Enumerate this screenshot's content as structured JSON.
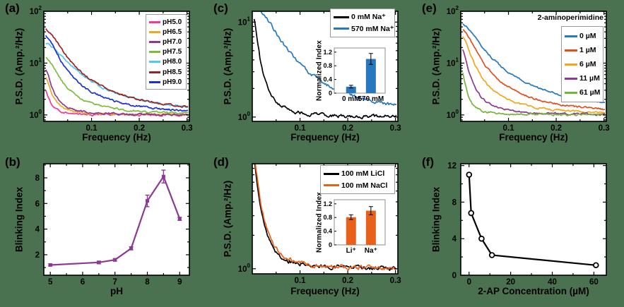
{
  "figure": {
    "background_color": "#4a7150",
    "plot_bg": "#ffffff",
    "panels": {
      "a": {
        "tag": "(a)",
        "xlabel": "Frequency (Hz)",
        "ylabel": "P.S.D. (Amp.²/Hz)"
      },
      "b": {
        "tag": "(b)",
        "xlabel": "pH",
        "ylabel": "Blinking Index"
      },
      "c": {
        "tag": "(c)",
        "xlabel": "Frequency (Hz)",
        "ylabel": "P.S.D. (Amp.²/Hz)",
        "inset_ylabel": "Normalized Index"
      },
      "d": {
        "tag": "(d)",
        "xlabel": "Frequency (Hz)",
        "ylabel": "P.S.D. (Amp.²/Hz)",
        "inset_ylabel": "Normalized Index"
      },
      "e": {
        "tag": "(e)",
        "xlabel": "Frequency (Hz)",
        "ylabel": "P.S.D. (Amp.²/Hz)",
        "legend_title": "2-aminoperimidine"
      },
      "f": {
        "tag": "(f)",
        "xlabel": "2-AP Concentration (µM)",
        "ylabel": "Blinking Index"
      }
    }
  },
  "chart_data": [
    {
      "panel": "a",
      "type": "line",
      "y_scale": "log",
      "xlabel": "Frequency (Hz)",
      "ylabel": "P.S.D. (Amp.²/Hz)",
      "x_range": [
        0,
        0.305
      ],
      "y_range": [
        0.75,
        100
      ],
      "x_ticks": [
        0.1,
        0.2,
        0.3
      ],
      "x_minor_ticks": [
        0.05,
        0.15,
        0.25
      ],
      "y_tick_exponents": [
        0,
        1,
        2
      ],
      "noise_floor": 1.0,
      "legend_position": "top-right",
      "series": [
        {
          "name": "pH5.0",
          "color": "#f5379b",
          "psd_peak": 2.3,
          "corner_freq_hz": 0.01
        },
        {
          "name": "pH6.5",
          "color": "#eea828",
          "psd_peak": 4.8,
          "corner_freq_hz": 0.012
        },
        {
          "name": "pH7.0",
          "color": "#8a3a92",
          "psd_peak": 7.5,
          "corner_freq_hz": 0.012
        },
        {
          "name": "pH7.5",
          "color": "#7cbd3c",
          "psd_peak": 12.5,
          "corner_freq_hz": 0.024
        },
        {
          "name": "pH8.0",
          "color": "#4fc8f0",
          "psd_peak": 23,
          "corner_freq_hz": 0.042
        },
        {
          "name": "pH8.5",
          "color": "#9c2123",
          "psd_peak": 45,
          "corner_freq_hz": 0.03
        },
        {
          "name": "pH9.0",
          "color": "#1c2fd8",
          "psd_peak": 33,
          "corner_freq_hz": 0.024
        }
      ]
    },
    {
      "panel": "b",
      "type": "scatter-line",
      "xlabel": "pH",
      "ylabel": "Blinking Index",
      "x": [
        5,
        6.5,
        7,
        7.5,
        8,
        8.5,
        9
      ],
      "y": [
        1.2,
        1.4,
        1.6,
        2.5,
        6.2,
        8.1,
        4.8
      ],
      "y_err": [
        0.08,
        0.1,
        0.1,
        0.12,
        0.45,
        0.5,
        0.12
      ],
      "color": "#8a3a92",
      "marker": "square",
      "x_range": [
        4.8,
        9.3
      ],
      "y_range": [
        0.4,
        9.1
      ],
      "x_ticks": [
        5,
        6,
        7,
        8,
        9
      ],
      "y_ticks": [
        2,
        4,
        6,
        8
      ],
      "x_minor_ticks": [
        5.5,
        6.5,
        7.5,
        8.5
      ],
      "y_minor_ticks": [
        1,
        3,
        5,
        7,
        9
      ]
    },
    {
      "panel": "c",
      "type": "line",
      "y_scale": "log",
      "xlabel": "Frequency (Hz)",
      "ylabel": "P.S.D. (Amp.²/Hz)",
      "x_range": [
        0,
        0.305
      ],
      "y_range": [
        0.9,
        13
      ],
      "x_ticks": [
        0.1,
        0.2,
        0.3
      ],
      "x_minor_ticks": [
        0.05,
        0.15,
        0.25
      ],
      "y_tick_exponents": [
        0,
        1
      ],
      "noise_floor": 1.0,
      "legend_position": "top-right",
      "series": [
        {
          "name": "0 mM Na⁺",
          "color": "#000000",
          "psd_peak": 11.5,
          "corner_freq_hz": 0.01
        },
        {
          "name": "570 mM Na⁺",
          "color": "#2878be",
          "psd_peak": 14,
          "corner_freq_hz": 0.048
        }
      ],
      "inset": {
        "type": "bar",
        "ylabel": "Normalized Index",
        "categories": [
          "0 mM",
          "570 mM"
        ],
        "values": [
          0.19,
          1.0
        ],
        "errors": [
          0.04,
          0.16
        ],
        "bar_color": "#2878be",
        "y_ticks": [
          0,
          0.4,
          0.8,
          1.2
        ],
        "y_range": [
          0,
          1.32
        ]
      }
    },
    {
      "panel": "d",
      "type": "line",
      "y_scale": "log",
      "xlabel": "Frequency (Hz)",
      "ylabel": "P.S.D. (Amp.²/Hz)",
      "x_range": [
        0,
        0.305
      ],
      "y_range": [
        0.9,
        8.8
      ],
      "x_ticks": [
        0.1,
        0.2,
        0.3
      ],
      "x_minor_ticks": [
        0.05,
        0.15,
        0.25
      ],
      "y_tick_exponents": [
        0
      ],
      "noise_floor": 1.0,
      "legend_position": "top-right",
      "series": [
        {
          "name": "100 mM LiCl",
          "color": "#000000",
          "psd_peak": 9,
          "corner_freq_hz": 0.011
        },
        {
          "name": "100 mM NaCl",
          "color": "#e8611a",
          "psd_peak": 9.5,
          "corner_freq_hz": 0.012
        }
      ],
      "inset": {
        "type": "bar",
        "ylabel": "Normalized Index",
        "categories": [
          "Li⁺",
          "Na⁺"
        ],
        "values": [
          0.81,
          1.0
        ],
        "errors": [
          0.07,
          0.12
        ],
        "bar_color": "#e8611a",
        "y_ticks": [
          0,
          0.4,
          0.8,
          1.2
        ],
        "y_range": [
          0,
          1.32
        ]
      }
    },
    {
      "panel": "e",
      "type": "line",
      "y_scale": "log",
      "legend_title": "2-aminoperimidine",
      "xlabel": "Frequency (Hz)",
      "ylabel": "P.S.D. (Amp.²/Hz)",
      "x_range": [
        0,
        0.305
      ],
      "y_range": [
        0.75,
        100
      ],
      "x_ticks": [
        0.1,
        0.2,
        0.3
      ],
      "x_minor_ticks": [
        0.05,
        0.15,
        0.25
      ],
      "y_tick_exponents": [
        0,
        1,
        2
      ],
      "noise_floor": 1.0,
      "legend_position": "top-right",
      "series": [
        {
          "name": "0 µM",
          "color": "#2878be",
          "psd_peak": 55,
          "corner_freq_hz": 0.034
        },
        {
          "name": "1 µM",
          "color": "#e0501e",
          "psd_peak": 45,
          "corner_freq_hz": 0.024
        },
        {
          "name": "6 µM",
          "color": "#f2a71b",
          "psd_peak": 34,
          "corner_freq_hz": 0.017
        },
        {
          "name": "11 µM",
          "color": "#8a3a92",
          "psd_peak": 20,
          "corner_freq_hz": 0.011
        },
        {
          "name": "61 µM",
          "color": "#77b43b",
          "psd_peak": 6.8,
          "corner_freq_hz": 0.008
        }
      ]
    },
    {
      "panel": "f",
      "type": "scatter-line",
      "xlabel": "2-AP Concentration (µM)",
      "ylabel": "Blinking Index",
      "x": [
        0,
        1,
        6,
        11,
        61
      ],
      "y": [
        11,
        6.8,
        4.0,
        2.2,
        1.1
      ],
      "color": "#000000",
      "marker": "open-circle",
      "x_range": [
        -4,
        66
      ],
      "y_range": [
        0,
        12.2
      ],
      "x_ticks": [
        0,
        20,
        40,
        60
      ],
      "y_ticks": [
        0,
        4,
        8,
        12
      ],
      "x_minor_ticks": [
        10,
        30,
        50
      ],
      "y_minor_ticks": [
        2,
        6,
        10
      ]
    }
  ]
}
